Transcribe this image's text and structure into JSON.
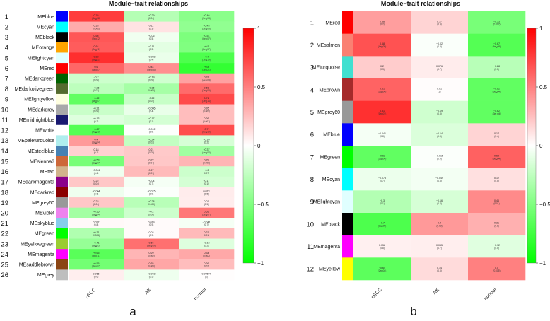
{
  "colors": {
    "neg": "#00ff00",
    "mid": "#ffffff",
    "pos": "#ff0000"
  },
  "chart_data": [
    {
      "type": "heatmap",
      "panel_label": "a",
      "title": "Module−trait relationships",
      "columns": [
        "cSCC",
        "AK",
        "normal"
      ],
      "legend_ticks": [
        "1",
        "0.5",
        "0",
        "−0.5",
        "−1"
      ],
      "ylim": [
        -1,
        1
      ],
      "rows": [
        {
          "num": "1",
          "module": "MEblue",
          "color": "#0000ff",
          "values": [
            0.76,
            -0.29,
            -0.46
          ],
          "pvalues": [
            "(3e∐08)",
            "(0.04)",
            "(3e∐04)"
          ]
        },
        {
          "num": "2",
          "module": "MEcyan",
          "color": "#00ffff",
          "values": [
            0.33,
            0.11,
            -0.43
          ],
          "pvalues": [
            "(0.002)",
            "(0.3)",
            "(2e∐05)"
          ]
        },
        {
          "num": "3",
          "module": "MEblack",
          "color": "#000000",
          "values": [
            0.66,
            -0.06,
            -0.51
          ],
          "pvalues": [
            "(2e∐12)",
            "(0.5)",
            "(6e∐07)"
          ]
        },
        {
          "num": "4",
          "module": "MEorange",
          "color": "#ffa500",
          "values": [
            0.64,
            -0.11,
            -0.5
          ],
          "pvalues": [
            "(2e∐11)",
            "(0.3)",
            "(8e∐07)"
          ]
        },
        {
          "num": "5",
          "module": "MElightcyan",
          "color": "#e0ffff",
          "values": [
            0.82,
            -0.083,
            -0.7
          ],
          "pvalues": [
            "(3e∐22)",
            "(0.4)",
            "(1e∐14)"
          ]
        },
        {
          "num": "6",
          "module": "MEred",
          "color": "#ff0000",
          "values": [
            0.6,
            0.44,
            -0.8
          ],
          "pvalues": [
            "(6e∐07)",
            "(2e∐05)",
            "(3e∐21)"
          ]
        },
        {
          "num": "7",
          "module": "MEdarkgreen",
          "color": "#006400",
          "values": [
            -0.2,
            -0.19,
            0.37
          ],
          "pvalues": [
            "(0.06)",
            "(0.08)",
            "(4e∐04)"
          ]
        },
        {
          "num": "8",
          "module": "MEdarkolivegreen",
          "color": "#556b2f",
          "values": [
            -0.26,
            -0.35,
            0.58
          ],
          "pvalues": [
            "(0.02)",
            "(0.001)",
            "(3e∐09)"
          ]
        },
        {
          "num": "9",
          "module": "MElightyellow",
          "color": "#ffffe0",
          "values": [
            -0.62,
            -0.22,
            0.71
          ],
          "pvalues": [
            "(4e∐07)",
            "(0.04)",
            "(3e∐14)"
          ]
        },
        {
          "num": "10",
          "module": "MEdarkgrey",
          "color": "#a9a9a9",
          "values": [
            -0.21,
            -0.086,
            0.26
          ],
          "pvalues": [
            "(0.06)",
            "(0.4)",
            "(0.009)"
          ]
        },
        {
          "num": "11",
          "module": "MEmidnightblue",
          "color": "#191970",
          "values": [
            -0.13,
            -0.17,
            0.26
          ],
          "pvalues": [
            "(0.2)",
            "(0.1)",
            "(0.007)"
          ]
        },
        {
          "num": "12",
          "module": "MEwhite",
          "color": "#ffffff",
          "values": [
            -0.67,
            -0.012,
            0.7
          ],
          "pvalues": [
            "(4e∐12)",
            "(0.9)",
            "(6e∐14)"
          ]
        },
        {
          "num": "13",
          "module": "MEpaleturquoise",
          "color": "#afeeee",
          "values": [
            0.4,
            -0.24,
            -0.16
          ],
          "pvalues": [
            "(1e∐04)",
            "(0.02)",
            "(0.2)"
          ]
        },
        {
          "num": "14",
          "module": "MEsteelblue",
          "color": "#4682b4",
          "values": [
            0.18,
            0.21,
            -0.37
          ],
          "pvalues": [
            "(0.1)",
            "(0.05)",
            "(4e∐04)"
          ]
        },
        {
          "num": "15",
          "module": "MEsienna3",
          "color": "#cd6839",
          "values": [
            -0.53,
            0.22,
            0.29
          ],
          "pvalues": [
            "(1e∐07)",
            "(0.04)",
            "(0.006)"
          ]
        },
        {
          "num": "16",
          "module": "MEtan",
          "color": "#d2b48c",
          "values": [
            -0.061,
            0.27,
            -0.2
          ],
          "pvalues": [
            "(0.6)",
            "(0.01)",
            "(0.07)"
          ]
        },
        {
          "num": "17",
          "module": "MEdarkmagenta",
          "color": "#8b008b",
          "values": [
            0.22,
            -0.04,
            -0.17
          ],
          "pvalues": [
            "(0.04)",
            "(0.7)",
            "(0.1)"
          ]
        },
        {
          "num": "18",
          "module": "MEdarkred",
          "color": "#8b0000",
          "values": [
            -0.064,
            -0.015,
            0.073
          ],
          "pvalues": [
            "(0.6)",
            "(0.9)",
            "(0.5)"
          ]
        },
        {
          "num": "19",
          "module": "MEgrey60",
          "color": "#999999",
          "values": [
            0.22,
            -0.28,
            0.07
          ],
          "pvalues": [
            "(0.04)",
            "(0.009)",
            "(0.5)"
          ]
        },
        {
          "num": "20",
          "module": "MEviolet",
          "color": "#ee82ee",
          "values": [
            -0.36,
            -0.2,
            0.53
          ],
          "pvalues": [
            "(5e∐04)",
            "(0.06)",
            "(2e∐07)"
          ]
        },
        {
          "num": "21",
          "module": "MEskyblue",
          "color": "#87ceeb",
          "values": [
            0.027,
            0.019,
            -0.041
          ],
          "pvalues": [
            "(0.8)",
            "(0.9)",
            "(0.7)"
          ]
        },
        {
          "num": "22",
          "module": "MEgreen",
          "color": "#00ff00",
          "values": [
            -0.31,
            0.02,
            0.27
          ],
          "pvalues": [
            "(0.004)",
            "(0.9)",
            "(0.01)"
          ]
        },
        {
          "num": "23",
          "module": "MEyellowgreen",
          "color": "#9acd32",
          "values": [
            -0.41,
            0.56,
            -0.13
          ],
          "pvalues": [
            "(8e∐05)",
            "(8e∐09)",
            "(0.2)"
          ]
        },
        {
          "num": "24",
          "module": "MEmagenta",
          "color": "#ff00ff",
          "values": [
            -0.65,
            0.29,
            0.34
          ],
          "pvalues": [
            "(9e∐11)",
            "(0.007)",
            "(0.002)"
          ]
        },
        {
          "num": "25",
          "module": "MEsaddlebrown",
          "color": "#8b4513",
          "values": [
            -0.55,
            0.35,
            0.26
          ],
          "pvalues": [
            "(3e∐07)",
            "(0.001)",
            "(0.02)"
          ]
        },
        {
          "num": "26",
          "module": "MEgrey",
          "color": "#bebebe",
          "values": [
            0.065,
            -0.068,
            0.00597
          ],
          "pvalues": [
            "(0.6)",
            "(0.5)",
            "(1)"
          ]
        }
      ]
    },
    {
      "type": "heatmap",
      "panel_label": "b",
      "title": "Module−trait relationships",
      "columns": [
        "cSCC",
        "AK",
        "normal"
      ],
      "legend_ticks": [
        "1",
        "0.5",
        "0",
        "−0.5",
        "−1"
      ],
      "ylim": [
        -1,
        1
      ],
      "rows": [
        {
          "num": "1",
          "module": "MEred",
          "color": "#ff0000",
          "values": [
            0.38,
            0.17,
            -0.53
          ],
          "pvalues": [
            "(0.2)",
            "(0.5)",
            "(0.002)"
          ]
        },
        {
          "num": "2",
          "module": "MEsalmon",
          "color": "#fa8072",
          "values": [
            0.68,
            -0.02,
            -0.67
          ],
          "pvalues": [
            "(4e∐05)",
            "(0.9)",
            "(6e∐05)"
          ]
        },
        {
          "num": "3",
          "module": "MEturquoise",
          "color": "#40e0d0",
          "values": [
            0.2,
            0.076,
            -0.28
          ],
          "pvalues": [
            "(0.3)",
            "(0.7)",
            "(0.1)"
          ]
        },
        {
          "num": "4",
          "module": "MEbrown",
          "color": "#a52a2a",
          "values": [
            0.61,
            0.01,
            -0.62
          ],
          "pvalues": [
            "(3e∐04)",
            "(1)",
            "(3e∐04)"
          ]
        },
        {
          "num": "5",
          "module": "MEgrey60",
          "color": "#999999",
          "values": [
            0.81,
            -0.19,
            -0.62
          ],
          "pvalues": [
            "(1e∐07)",
            "(0.3)",
            "(3e∐04)"
          ]
        },
        {
          "num": "6",
          "module": "MEblue",
          "color": "#0000ff",
          "values": [
            -0.041,
            -0.14,
            0.17
          ],
          "pvalues": [
            "(0.8)",
            "(0.5)",
            "(0.4)"
          ]
        },
        {
          "num": "7",
          "module": "MEgreen",
          "color": "#00ff00",
          "values": [
            -0.62,
            -0.015,
            0.62
          ],
          "pvalues": [
            "(3e∐04)",
            "(0.9)",
            "(3e∐04)"
          ]
        },
        {
          "num": "8",
          "module": "MEcyan",
          "color": "#00ffff",
          "values": [
            -0.073,
            -0.049,
            0.12
          ],
          "pvalues": [
            "(0.7)",
            "(0.8)",
            "(0.5)"
          ]
        },
        {
          "num": "9",
          "module": "MElightcyan",
          "color": "#e0ffff",
          "values": [
            -0.3,
            -0.16,
            0.46
          ],
          "pvalues": [
            "(0.1)",
            "(0.4)",
            "(0.01)"
          ]
        },
        {
          "num": "10",
          "module": "MEblack",
          "color": "#000000",
          "values": [
            -0.7,
            0.4,
            0.31
          ],
          "pvalues": [
            "(3e∐05)",
            "(0.03)",
            "(0.1)"
          ]
        },
        {
          "num": "11",
          "module": "MEmagenta",
          "color": "#ff00ff",
          "values": [
            0.058,
            0.065,
            -0.12
          ],
          "pvalues": [
            "(0.8)",
            "(0.7)",
            "(0.5)"
          ]
        },
        {
          "num": "12",
          "module": "MEyellow",
          "color": "#ffff00",
          "values": [
            -0.64,
            0.14,
            0.5
          ],
          "pvalues": [
            "(2e∐04)",
            "(0.5)",
            "(0.005)"
          ]
        }
      ]
    }
  ]
}
